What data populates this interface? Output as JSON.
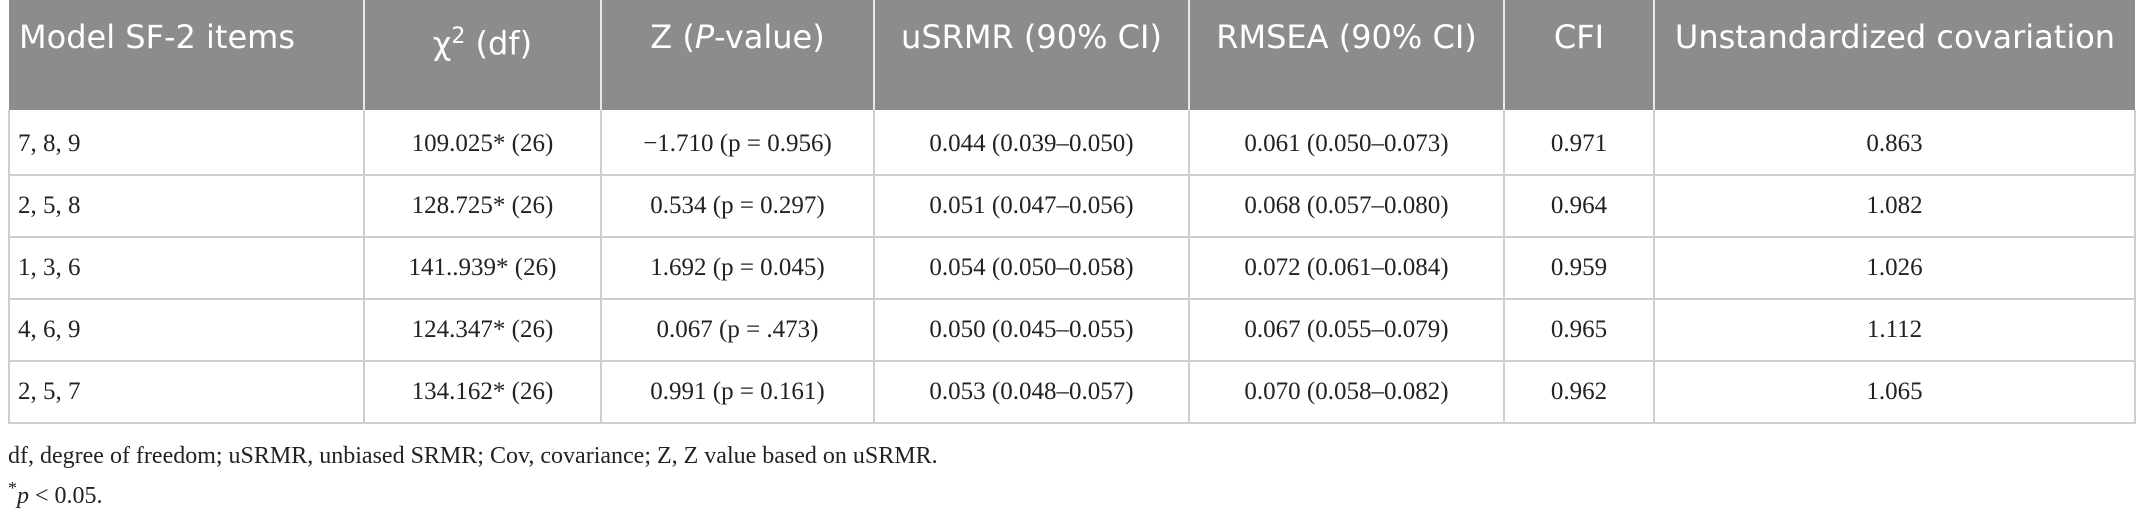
{
  "table": {
    "headers": [
      {
        "text": "Model SF-2 items"
      },
      {
        "text": "χ",
        "sup": "2",
        "rest": " (df)"
      },
      {
        "pre": "Z (",
        "ital": "P",
        "post": "-value)"
      },
      {
        "text": "uSRMR (90% CI)"
      },
      {
        "text": "RMSEA (90% CI)"
      },
      {
        "text": "CFI"
      },
      {
        "text": "Unstandardized covariation"
      }
    ],
    "rows": [
      [
        "7, 8, 9",
        "109.025* (26)",
        "−1.710 (p = 0.956)",
        "0.044 (0.039–0.050)",
        "0.061 (0.050–0.073)",
        "0.971",
        "0.863"
      ],
      [
        "2, 5, 8",
        "128.725* (26)",
        "0.534 (p = 0.297)",
        "0.051 (0.047–0.056)",
        "0.068 (0.057–0.080)",
        "0.964",
        "1.082"
      ],
      [
        "1, 3, 6",
        "141..939* (26)",
        "1.692 (p = 0.045)",
        "0.054 (0.050–0.058)",
        "0.072 (0.061–0.084)",
        "0.959",
        "1.026"
      ],
      [
        "4, 6, 9",
        "124.347* (26)",
        "0.067 (p = .473)",
        "0.050 (0.045–0.055)",
        "0.067 (0.055–0.079)",
        "0.965",
        "1.112"
      ],
      [
        "2, 5, 7",
        "134.162* (26)",
        "0.991 (p = 0.161)",
        "0.053 (0.048–0.057)",
        "0.070 (0.058–0.082)",
        "0.962",
        "1.065"
      ]
    ]
  },
  "footnotes": {
    "abbrev": "df, degree of freedom; uSRMR, unbiased SRMR; Cov, covariance; Z, Z value based on uSRMR.",
    "sig_star": "*",
    "sig_p": "p",
    "sig_rest": " < 0.05."
  }
}
